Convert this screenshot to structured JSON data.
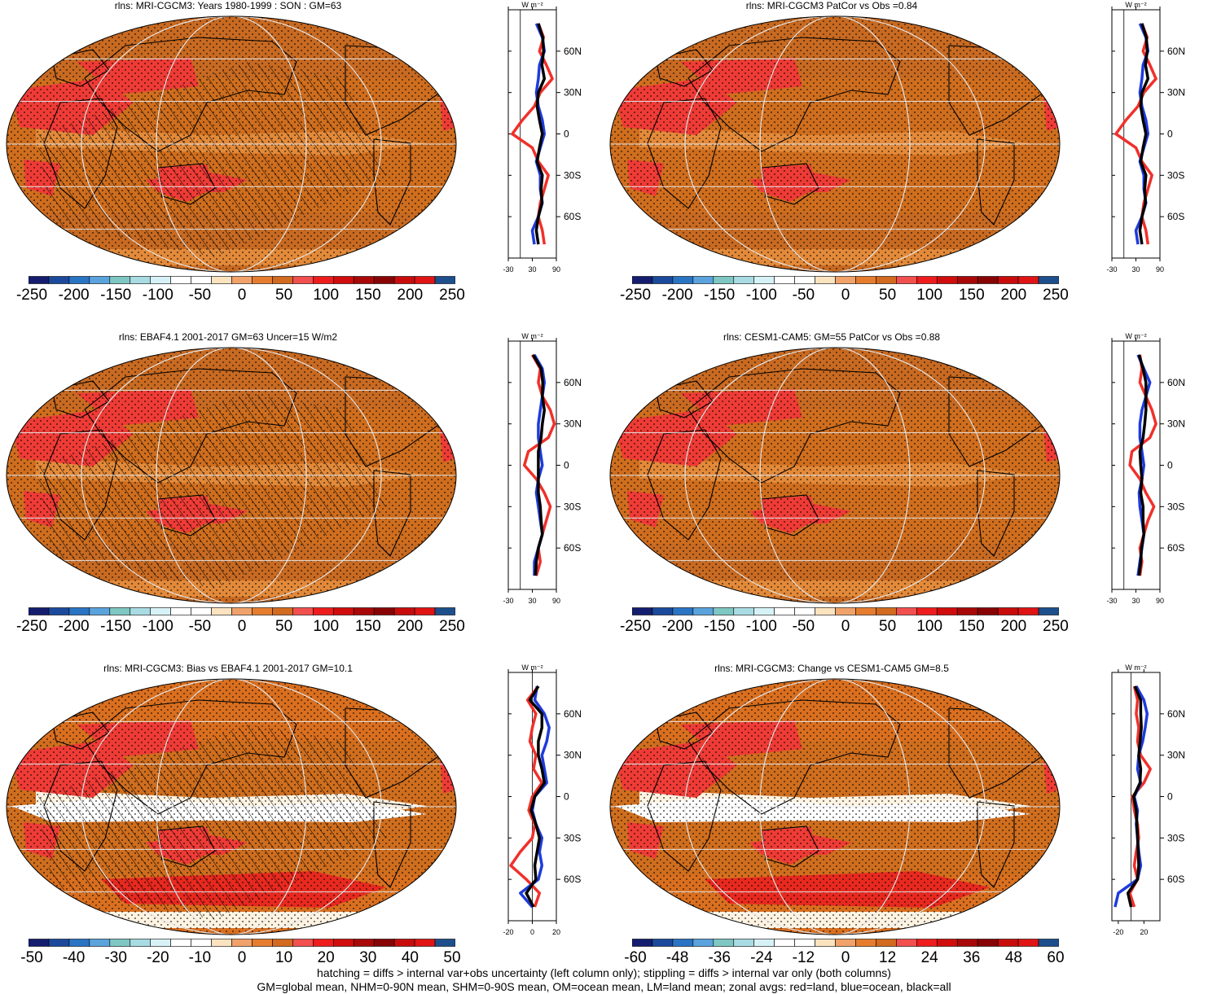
{
  "colors": {
    "ocean_fill": "#cf6e1e",
    "land_red": "#f0302a",
    "ocean_blue": "#1f3bdc",
    "all_black": "#000000",
    "grid": "#e6e6e6"
  },
  "colorbar_colors": [
    "#141d6e",
    "#1b4a9c",
    "#2a74c4",
    "#5aa3dc",
    "#7fc7c2",
    "#a9dbe3",
    "#d7f2f6",
    "#ffffff",
    "#ffffff",
    "#fce3c0",
    "#f0a26a",
    "#e67d2e",
    "#d26a1f",
    "#f24f4f",
    "#ee1c1c",
    "#d10c0c",
    "#a90808",
    "#880404",
    "#c80c0c",
    "#e01414",
    "#1d4f8c"
  ],
  "zonal_lat_labels": [
    "60N",
    "30N",
    "0",
    "30S",
    "60S"
  ],
  "zonal_units": "W m⁻²",
  "panels": [
    {
      "title": "rlns: MRI-CGCM3: Years 1980-1999 : SON : GM=63",
      "colorbar_labels": [
        "-250",
        "-200",
        "-150",
        "-100",
        "-50",
        "0",
        "50",
        "100",
        "150",
        "200",
        "250"
      ],
      "hatching": true,
      "chart_data": {
        "type": "line",
        "title": "",
        "x_ticks": [
          "-30",
          "30",
          "90"
        ],
        "xlim": [
          -30,
          90
        ],
        "ylim": [
          -90,
          90
        ],
        "latitude": [
          80,
          70,
          60,
          50,
          40,
          30,
          20,
          10,
          0,
          -10,
          -20,
          -30,
          -40,
          -50,
          -60,
          -70,
          -80
        ],
        "series": [
          {
            "name": "land",
            "values": [
              45,
              58,
              48,
              65,
              80,
              50,
              35,
              5,
              -20,
              30,
              45,
              70,
              60,
              50,
              45,
              55,
              60
            ]
          },
          {
            "name": "ocean",
            "values": [
              40,
              55,
              60,
              48,
              45,
              40,
              45,
              55,
              60,
              50,
              40,
              50,
              50,
              55,
              45,
              30,
              35
            ]
          },
          {
            "name": "all",
            "values": [
              45,
              56,
              58,
              54,
              60,
              45,
              42,
              48,
              55,
              48,
              42,
              55,
              52,
              54,
              45,
              40,
              45
            ]
          }
        ]
      }
    },
    {
      "title": "rlns: MRI-CGCM3 PatCor vs Obs =0.84",
      "colorbar_labels": [
        "-250",
        "-200",
        "-150",
        "-100",
        "-50",
        "0",
        "50",
        "100",
        "150",
        "200",
        "250"
      ],
      "hatching": false,
      "chart_data": {
        "type": "line",
        "title": "",
        "x_ticks": [
          "-30",
          "30",
          "90"
        ],
        "xlim": [
          -30,
          90
        ],
        "ylim": [
          -90,
          90
        ],
        "latitude": [
          80,
          70,
          60,
          50,
          40,
          30,
          20,
          10,
          0,
          -10,
          -20,
          -30,
          -40,
          -50,
          -60,
          -70,
          -80
        ],
        "series": [
          {
            "name": "land",
            "values": [
              45,
              58,
              48,
              65,
              80,
              50,
              35,
              5,
              -20,
              30,
              45,
              70,
              60,
              50,
              45,
              55,
              60
            ]
          },
          {
            "name": "ocean",
            "values": [
              40,
              55,
              60,
              48,
              45,
              40,
              45,
              55,
              60,
              50,
              40,
              50,
              50,
              55,
              45,
              30,
              35
            ]
          },
          {
            "name": "all",
            "values": [
              45,
              56,
              58,
              54,
              60,
              45,
              42,
              48,
              55,
              48,
              42,
              55,
              52,
              54,
              45,
              40,
              45
            ]
          }
        ]
      }
    },
    {
      "title": "rlns: EBAF4.1 2001-2017 GM=63 Uncer=15 W/m2",
      "colorbar_labels": [
        "-250",
        "-200",
        "-150",
        "-100",
        "-50",
        "0",
        "50",
        "100",
        "150",
        "200",
        "250"
      ],
      "hatching": true,
      "chart_data": {
        "type": "line",
        "title": "",
        "x_ticks": [
          "-30",
          "30",
          "90"
        ],
        "xlim": [
          -30,
          90
        ],
        "ylim": [
          -90,
          90
        ],
        "latitude": [
          80,
          70,
          60,
          50,
          40,
          30,
          20,
          10,
          0,
          -10,
          -20,
          -30,
          -40,
          -50,
          -60,
          -70,
          -80
        ],
        "series": [
          {
            "name": "land",
            "values": [
              30,
              50,
              45,
              55,
              75,
              85,
              70,
              20,
              10,
              40,
              60,
              75,
              65,
              55,
              45,
              50,
              40
            ]
          },
          {
            "name": "ocean",
            "values": [
              35,
              55,
              60,
              55,
              50,
              45,
              45,
              50,
              55,
              45,
              40,
              45,
              50,
              55,
              45,
              35,
              35
            ]
          },
          {
            "name": "all",
            "values": [
              32,
              52,
              56,
              55,
              60,
              55,
              52,
              45,
              45,
              45,
              45,
              50,
              52,
              55,
              45,
              40,
              38
            ]
          }
        ]
      }
    },
    {
      "title": "rlns: CESM1-CAM5: GM=55 PatCor vs Obs =0.88",
      "colorbar_labels": [
        "-250",
        "-200",
        "-150",
        "-100",
        "-50",
        "0",
        "50",
        "100",
        "150",
        "200",
        "250"
      ],
      "hatching": false,
      "chart_data": {
        "type": "line",
        "title": "",
        "x_ticks": [
          "-30",
          "30",
          "90"
        ],
        "xlim": [
          -30,
          90
        ],
        "ylim": [
          -90,
          90
        ],
        "latitude": [
          80,
          70,
          60,
          50,
          40,
          30,
          20,
          10,
          0,
          -10,
          -20,
          -30,
          -40,
          -50,
          -60,
          -70,
          -80
        ],
        "series": [
          {
            "name": "land",
            "values": [
              40,
              45,
              40,
              55,
              70,
              80,
              65,
              20,
              15,
              40,
              55,
              75,
              60,
              50,
              40,
              45,
              40
            ]
          },
          {
            "name": "ocean",
            "values": [
              35,
              50,
              65,
              55,
              45,
              40,
              40,
              45,
              50,
              45,
              38,
              40,
              45,
              50,
              45,
              40,
              35
            ]
          },
          {
            "name": "all",
            "values": [
              38,
              48,
              55,
              55,
              55,
              52,
              48,
              40,
              42,
              45,
              42,
              48,
              48,
              50,
              44,
              42,
              38
            ]
          }
        ]
      }
    },
    {
      "title": "rlns: MRI-CGCM3: Bias vs EBAF4.1 2001-2017  GM=10.1",
      "colorbar_labels": [
        "-50",
        "-40",
        "-30",
        "-20",
        "-10",
        "0",
        "10",
        "20",
        "30",
        "40",
        "50"
      ],
      "hatching": true,
      "chart_data": {
        "type": "line",
        "title": "",
        "x_ticks": [
          "-20",
          "0",
          "20"
        ],
        "xlim": [
          -20,
          20
        ],
        "ylim": [
          -90,
          90
        ],
        "latitude": [
          80,
          70,
          60,
          50,
          40,
          30,
          20,
          10,
          0,
          -10,
          -20,
          -30,
          -40,
          -50,
          -60,
          -70,
          -80
        ],
        "series": [
          {
            "name": "land",
            "values": [
              5,
              -4,
              3,
              0,
              -2,
              3,
              1,
              8,
              0,
              -3,
              2,
              0,
              -10,
              -18,
              -5,
              6,
              2
            ]
          },
          {
            "name": "ocean",
            "values": [
              4,
              2,
              10,
              14,
              12,
              8,
              10,
              12,
              2,
              0,
              3,
              8,
              6,
              8,
              5,
              -10,
              0
            ]
          },
          {
            "name": "all",
            "values": [
              5,
              -2,
              8,
              8,
              5,
              5,
              8,
              10,
              2,
              -1,
              3,
              6,
              4,
              2,
              3,
              -5,
              1
            ]
          }
        ]
      }
    },
    {
      "title": "rlns: MRI-CGCM3: Change vs CESM1-CAM5 GM=8.5",
      "colorbar_labels": [
        "-60",
        "-48",
        "-36",
        "-24",
        "-12",
        "0",
        "12",
        "24",
        "36",
        "48",
        "60"
      ],
      "hatching": false,
      "chart_data": {
        "type": "line",
        "title": "",
        "x_ticks": [
          "-20",
          "20"
        ],
        "xlim": [
          -30,
          45
        ],
        "ylim": [
          -90,
          90
        ],
        "latitude": [
          80,
          70,
          60,
          50,
          40,
          30,
          20,
          10,
          0,
          -10,
          -20,
          -30,
          -40,
          -50,
          -60,
          -70,
          -80
        ],
        "series": [
          {
            "name": "land",
            "values": [
              5,
              10,
              8,
              12,
              10,
              15,
              30,
              20,
              2,
              5,
              10,
              12,
              8,
              5,
              10,
              -2,
              5
            ]
          },
          {
            "name": "ocean",
            "values": [
              8,
              20,
              25,
              22,
              18,
              12,
              10,
              15,
              5,
              10,
              8,
              10,
              12,
              15,
              10,
              -20,
              -25
            ]
          },
          {
            "name": "all",
            "values": [
              6,
              15,
              15,
              16,
              14,
              12,
              15,
              14,
              4,
              8,
              9,
              10,
              11,
              12,
              10,
              -5,
              0
            ]
          }
        ]
      }
    }
  ],
  "footer": [
    "hatching = diffs > internal var+obs uncertainty (left column only); stippling = diffs > internal var only (both columns)",
    "GM=global mean, NHM=0-90N mean, SHM=0-90S mean, OM=ocean mean, LM=land mean; zonal avgs: red=land, blue=ocean, black=all"
  ]
}
